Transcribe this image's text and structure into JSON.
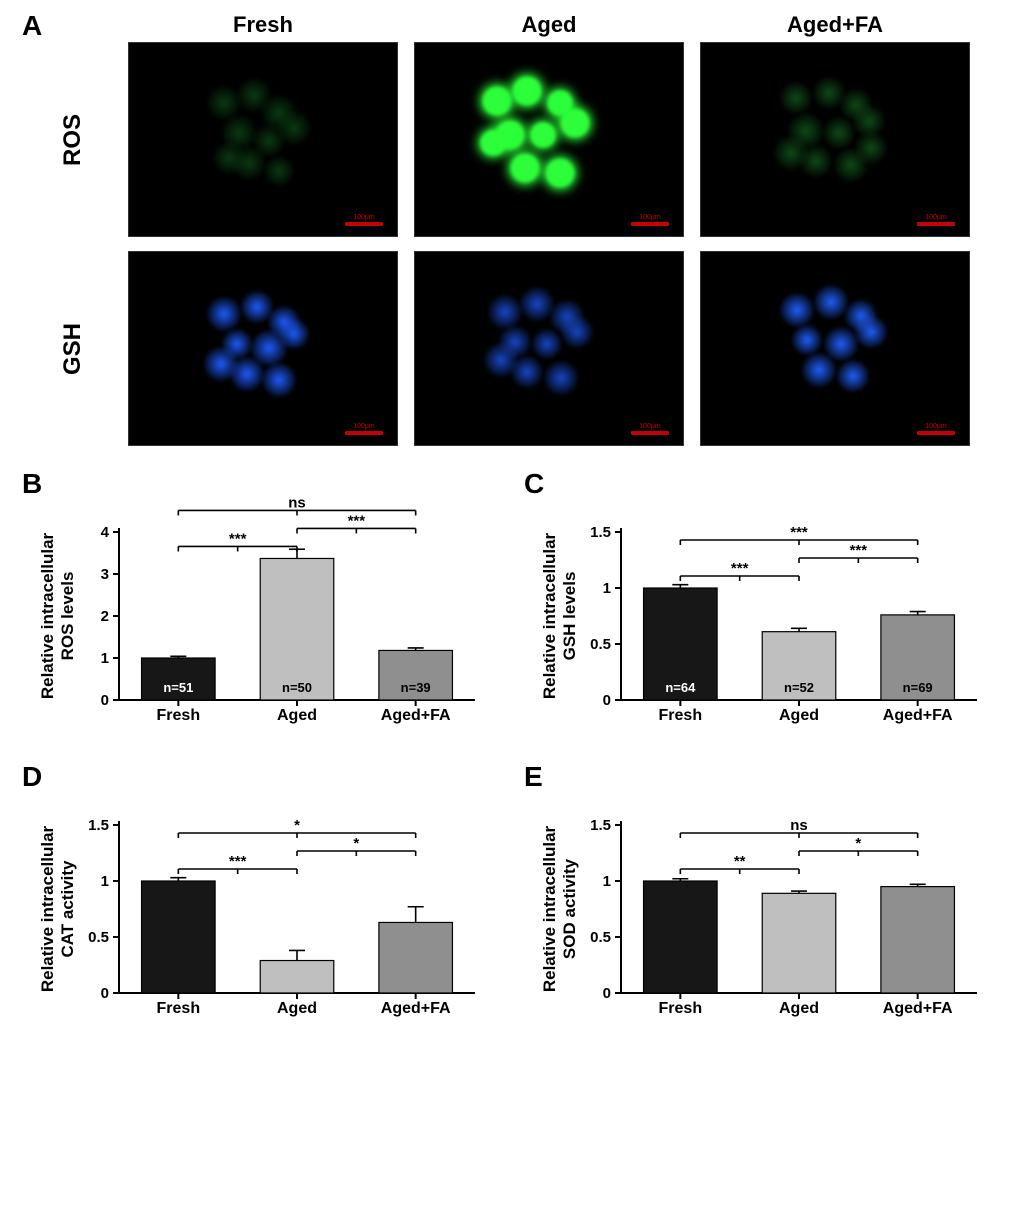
{
  "panelA": {
    "label": "A",
    "columns": [
      "Fresh",
      "Aged",
      "Aged+FA"
    ],
    "rows": [
      "ROS",
      "GSH"
    ],
    "scalebar_label": "100μm",
    "scalebar_color": "#c40000",
    "background": "#000000",
    "images": {
      "ROS": [
        {
          "color": "#0a3a12",
          "bright": false,
          "cells": [
            [
              95,
              60
            ],
            [
              125,
              52
            ],
            [
              150,
              70
            ],
            [
              110,
              90
            ],
            [
              140,
              98
            ],
            [
              165,
              85
            ],
            [
              120,
              120
            ],
            [
              150,
              128
            ],
            [
              100,
              115
            ]
          ]
        },
        {
          "color": "#2cff3a",
          "bright": true,
          "cells": [
            [
              82,
              58
            ],
            [
              112,
              48
            ],
            [
              145,
              60
            ],
            [
              95,
              92
            ],
            [
              128,
              92
            ],
            [
              160,
              80
            ],
            [
              110,
              125
            ],
            [
              145,
              130
            ],
            [
              78,
              100
            ]
          ]
        },
        {
          "color": "#0f4a18",
          "bright": false,
          "cells": [
            [
              95,
              55
            ],
            [
              128,
              50
            ],
            [
              155,
              62
            ],
            [
              105,
              88
            ],
            [
              138,
              90
            ],
            [
              168,
              78
            ],
            [
              115,
              118
            ],
            [
              150,
              122
            ],
            [
              90,
              110
            ],
            [
              170,
              105
            ]
          ]
        }
      ],
      "GSH": [
        {
          "color": "#1e5cff",
          "bright": false,
          "cells": [
            [
              95,
              62
            ],
            [
              128,
              55
            ],
            [
              155,
              70
            ],
            [
              108,
              92
            ],
            [
              140,
              96
            ],
            [
              165,
              82
            ],
            [
              118,
              122
            ],
            [
              150,
              128
            ],
            [
              92,
              112
            ]
          ]
        },
        {
          "color": "#1848c8",
          "bright": false,
          "cells": [
            [
              90,
              60
            ],
            [
              122,
              52
            ],
            [
              152,
              65
            ],
            [
              100,
              90
            ],
            [
              132,
              92
            ],
            [
              162,
              80
            ],
            [
              112,
              120
            ],
            [
              146,
              126
            ],
            [
              86,
              108
            ]
          ]
        },
        {
          "color": "#2060ff",
          "bright": false,
          "cells": [
            [
              96,
              58
            ],
            [
              130,
              50
            ],
            [
              160,
              64
            ],
            [
              106,
              88
            ],
            [
              140,
              92
            ],
            [
              170,
              80
            ],
            [
              118,
              118
            ],
            [
              152,
              124
            ]
          ]
        }
      ]
    }
  },
  "charts": {
    "B": {
      "label": "B",
      "type": "bar",
      "ylabel": "Relative intracellular\nROS levels",
      "categories": [
        "Fresh",
        "Aged",
        "Aged+FA"
      ],
      "values": [
        1.0,
        3.37,
        1.18
      ],
      "errors": [
        0.04,
        0.22,
        0.06
      ],
      "n_labels": [
        "n=51",
        "n=50",
        "n=39"
      ],
      "n_label_color_mode": [
        "light",
        "dark",
        "dark"
      ],
      "bar_colors": [
        "#171717",
        "#bfbfbf",
        "#8f8f8f"
      ],
      "ylim": [
        0,
        4
      ],
      "yticks": [
        0,
        1,
        2,
        3,
        4
      ],
      "sig": [
        {
          "a": 0,
          "b": 2,
          "level": 3,
          "label": "ns"
        },
        {
          "a": 0,
          "b": 1,
          "level": 1,
          "label": "***"
        },
        {
          "a": 1,
          "b": 2,
          "level": 2,
          "label": "***"
        }
      ]
    },
    "C": {
      "label": "C",
      "type": "bar",
      "ylabel": "Relative intracellular\nGSH levels",
      "categories": [
        "Fresh",
        "Aged",
        "Aged+FA"
      ],
      "values": [
        1.0,
        0.61,
        0.76
      ],
      "errors": [
        0.03,
        0.03,
        0.03
      ],
      "n_labels": [
        "n=64",
        "n=52",
        "n=69"
      ],
      "n_label_color_mode": [
        "light",
        "dark",
        "dark"
      ],
      "bar_colors": [
        "#171717",
        "#bfbfbf",
        "#8f8f8f"
      ],
      "ylim": [
        0,
        1.5
      ],
      "yticks": [
        0,
        0.5,
        1.0,
        1.5
      ],
      "sig": [
        {
          "a": 0,
          "b": 2,
          "level": 3,
          "label": "***"
        },
        {
          "a": 0,
          "b": 1,
          "level": 1,
          "label": "***"
        },
        {
          "a": 1,
          "b": 2,
          "level": 2,
          "label": "***"
        }
      ]
    },
    "D": {
      "label": "D",
      "type": "bar",
      "ylabel": "Relative intracellular\nCAT activity",
      "categories": [
        "Fresh",
        "Aged",
        "Aged+FA"
      ],
      "values": [
        1.0,
        0.29,
        0.63
      ],
      "errors": [
        0.03,
        0.09,
        0.14
      ],
      "n_labels": null,
      "bar_colors": [
        "#171717",
        "#bfbfbf",
        "#8f8f8f"
      ],
      "ylim": [
        0,
        1.5
      ],
      "yticks": [
        0,
        0.5,
        1.0,
        1.5
      ],
      "sig": [
        {
          "a": 0,
          "b": 2,
          "level": 3,
          "label": "*"
        },
        {
          "a": 0,
          "b": 1,
          "level": 1,
          "label": "***"
        },
        {
          "a": 1,
          "b": 2,
          "level": 2,
          "label": "*"
        }
      ]
    },
    "E": {
      "label": "E",
      "type": "bar",
      "ylabel": "Relative intracellular\nSOD activity",
      "categories": [
        "Fresh",
        "Aged",
        "Aged+FA"
      ],
      "values": [
        1.0,
        0.89,
        0.95
      ],
      "errors": [
        0.02,
        0.02,
        0.02
      ],
      "n_labels": null,
      "bar_colors": [
        "#171717",
        "#bfbfbf",
        "#8f8f8f"
      ],
      "ylim": [
        0,
        1.5
      ],
      "yticks": [
        0,
        0.5,
        1.0,
        1.5
      ],
      "sig": [
        {
          "a": 0,
          "b": 2,
          "level": 3,
          "label": "ns"
        },
        {
          "a": 0,
          "b": 1,
          "level": 1,
          "label": "**"
        },
        {
          "a": 1,
          "b": 2,
          "level": 2,
          "label": "*"
        }
      ]
    }
  },
  "style": {
    "axis_color": "#000000",
    "axis_width": 2,
    "tick_fontsize": 15,
    "label_fontsize": 17,
    "cat_fontsize": 16,
    "sig_fontsize": 15,
    "n_fontsize": 13,
    "bar_width_ratio": 0.62,
    "err_cap": 8
  }
}
